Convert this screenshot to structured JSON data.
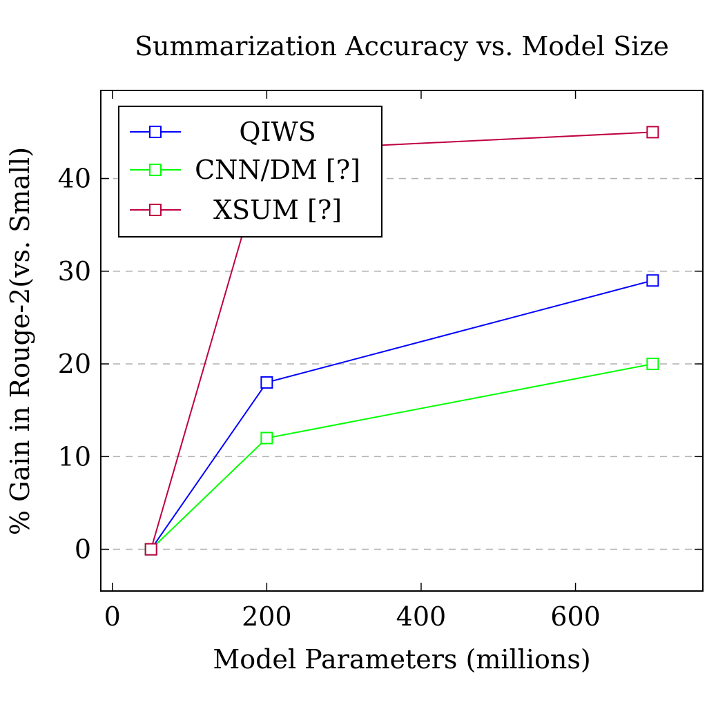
{
  "chart_data": {
    "type": "line",
    "title": "Summarization Accuracy vs. Model Size",
    "xlabel": "Model Parameters (millions)",
    "ylabel": "% Gain in Rouge-2(vs. Small)",
    "xlim": [
      -15,
      765
    ],
    "ylim": [
      -4.5,
      49.5
    ],
    "xticks": [
      0,
      200,
      400,
      600
    ],
    "yticks": [
      0,
      10,
      20,
      30,
      40
    ],
    "grid": "horizontal-dashed",
    "legend_position": "top-left",
    "series": [
      {
        "name": "QIWS",
        "color": "#0000ff",
        "marker": "square",
        "x": [
          50,
          200,
          700
        ],
        "y": [
          0,
          18,
          29
        ]
      },
      {
        "name": "CNN/DM [?]",
        "color": "#00ff00",
        "marker": "square",
        "x": [
          50,
          200,
          700
        ],
        "y": [
          0,
          12,
          20
        ]
      },
      {
        "name": "XSUM [?]",
        "color": "#bf0040",
        "marker": "square",
        "x": [
          50,
          200,
          700
        ],
        "y": [
          0,
          43,
          45
        ]
      }
    ]
  }
}
